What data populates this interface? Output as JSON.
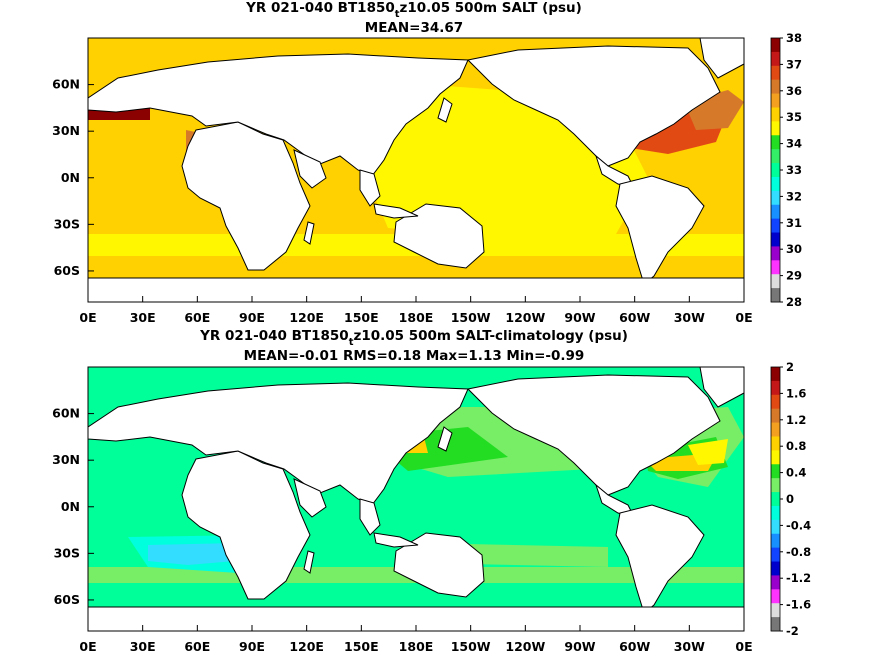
{
  "chart_data": [
    {
      "type": "heatmap",
      "title": "YR 021-040 BT1850",
      "title_subscript": "t",
      "title_rest": "z10.05 500m SALT (psu)",
      "subtitle": "MEAN=34.67",
      "x_ticks": [
        "0E",
        "30E",
        "60E",
        "90E",
        "120E",
        "150E",
        "180E",
        "150W",
        "120W",
        "90W",
        "60W",
        "30W",
        "0E"
      ],
      "y_ticks": [
        "60N",
        "30N",
        "0N",
        "30S",
        "60S"
      ],
      "xlim": [
        0,
        360
      ],
      "ylim": [
        -80,
        90
      ],
      "colorbar": {
        "ticks": [
          "38",
          "37",
          "36",
          "35",
          "34",
          "33",
          "32",
          "31",
          "30",
          "29",
          "28"
        ],
        "colors": [
          "#8b0000",
          "#c41818",
          "#e24a14",
          "#d67a2a",
          "#f3a020",
          "#ffd100",
          "#fff700",
          "#22dd22",
          "#33ee66",
          "#00ff99",
          "#00ffdd",
          "#33ddff",
          "#1890ff",
          "#1144ff",
          "#0000cc",
          "#9900cc",
          "#ff33ff",
          "#dddddd",
          "#777777"
        ]
      },
      "regions": [
        {
          "name": "atlantic_high",
          "value": 36.4
        },
        {
          "name": "atlantic_mid",
          "value": 35.5
        },
        {
          "name": "pacific",
          "value": 34.6
        },
        {
          "name": "mediterranean",
          "value": 37.5
        },
        {
          "name": "arabian",
          "value": 35.8
        },
        {
          "name": "japan_sea",
          "value": 34.0
        }
      ]
    },
    {
      "type": "heatmap",
      "title": "YR 021-040 BT1850",
      "title_subscript": "t",
      "title_rest": "z10.05 500m SALT-climatology (psu)",
      "subtitle": "MEAN=-0.01   RMS=0.18   Max=1.13   Min=-0.99",
      "x_ticks": [
        "0E",
        "30E",
        "60E",
        "90E",
        "120E",
        "150E",
        "180E",
        "150W",
        "120W",
        "90W",
        "60W",
        "30W",
        "0E"
      ],
      "y_ticks": [
        "60N",
        "30N",
        "0N",
        "30S",
        "60S"
      ],
      "xlim": [
        0,
        360
      ],
      "ylim": [
        -80,
        90
      ],
      "colorbar": {
        "ticks": [
          "2",
          "1.6",
          "1.2",
          "0.8",
          "0.4",
          "0",
          "-0.4",
          "-0.8",
          "-1.2",
          "-1.6",
          "-2"
        ],
        "colors": [
          "#8b0000",
          "#c41818",
          "#e24a14",
          "#d67a2a",
          "#f3a020",
          "#ffd100",
          "#fff700",
          "#22dd22",
          "#77ee66",
          "#00ff99",
          "#00ffdd",
          "#33ddff",
          "#1890ff",
          "#1144ff",
          "#0000cc",
          "#9900cc",
          "#ff33ff",
          "#dddddd",
          "#777777"
        ]
      },
      "regions": [
        {
          "name": "north_pacific_positive",
          "value": 0.6
        },
        {
          "name": "north_atlantic_positive",
          "value": 0.5
        },
        {
          "name": "south_indian_negative",
          "value": -0.5
        },
        {
          "name": "background",
          "value": -0.05
        }
      ]
    }
  ]
}
